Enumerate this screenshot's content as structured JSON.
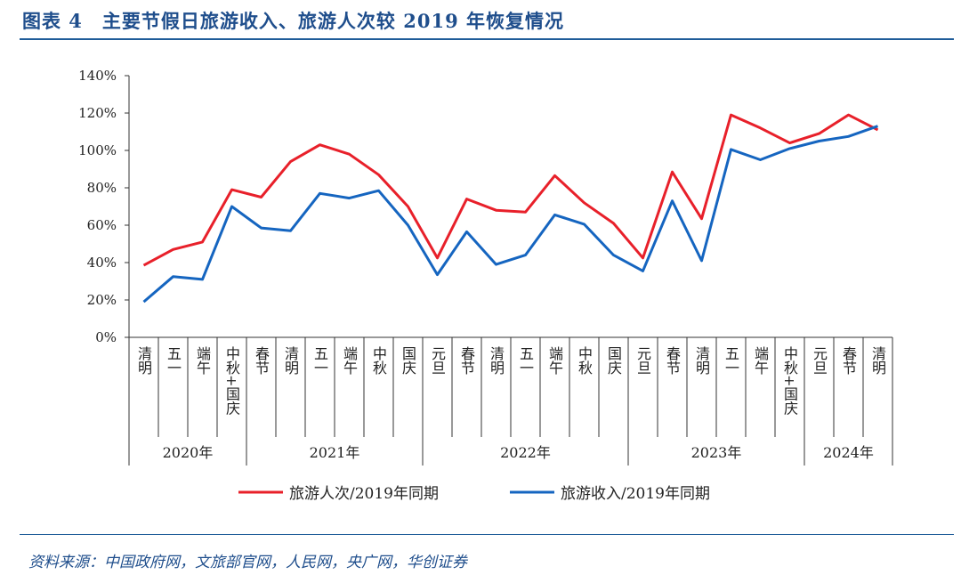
{
  "figure": {
    "title": "图表 4　主要节假日旅游收入、旅游人次较 2019 年恢复情况",
    "source": "资料来源：中国政府网，文旅部官网，人民网，央广网，华创证券"
  },
  "chart_data": {
    "type": "line",
    "title": "",
    "xlabel": "",
    "ylabel": "",
    "ylim": [
      0,
      140
    ],
    "y_unit": "%",
    "y_ticks": [
      "0%",
      "20%",
      "40%",
      "60%",
      "80%",
      "100%",
      "120%",
      "140%"
    ],
    "y_tick_values": [
      0,
      20,
      40,
      60,
      80,
      100,
      120,
      140
    ],
    "grid": false,
    "legend_position": "bottom",
    "categories": [
      "清明",
      "五一",
      "端午",
      "中秋+国庆",
      "春节",
      "清明",
      "五一",
      "端午",
      "中秋",
      "国庆",
      "元旦",
      "春节",
      "清明",
      "五一",
      "端午",
      "中秋",
      "国庆",
      "元旦",
      "春节",
      "清明",
      "五一",
      "端午",
      "中秋+国庆",
      "元旦",
      "春节",
      "清明"
    ],
    "year_groups": [
      {
        "label": "2020年",
        "count": 4
      },
      {
        "label": "2021年",
        "count": 6
      },
      {
        "label": "2022年",
        "count": 7
      },
      {
        "label": "2023年",
        "count": 6
      },
      {
        "label": "2024年",
        "count": 3
      }
    ],
    "series": [
      {
        "name": "旅游人次/2019年同期",
        "color": "#e8202a",
        "values": [
          38.5,
          47,
          51,
          79,
          75,
          94,
          103,
          98,
          87,
          70,
          42.5,
          74,
          68,
          67,
          86.5,
          72,
          61,
          42.5,
          88.5,
          63.5,
          119,
          112,
          104,
          109,
          119,
          111
        ]
      },
      {
        "name": "旅游收入/2019年同期",
        "color": "#1565c0",
        "values": [
          19,
          32.5,
          31,
          70,
          58.5,
          57,
          77,
          74.5,
          78.5,
          60,
          33.5,
          56.5,
          39,
          44,
          65.5,
          60.5,
          44,
          35.5,
          73,
          41,
          100.5,
          95,
          101,
          105,
          107.5,
          113
        ]
      }
    ]
  }
}
